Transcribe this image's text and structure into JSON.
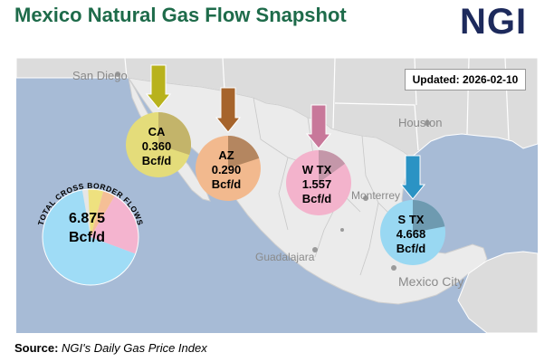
{
  "header": {
    "title": "Mexico Natural Gas Flow Snapshot",
    "logo_text": "NGI"
  },
  "updated": {
    "label": "Updated: 2026-02-10"
  },
  "map": {
    "water_color": "#a7bbd6",
    "land_color": "#dcdcdc",
    "mexico_color": "#ebebeb",
    "cities": [
      {
        "id": "san-diego",
        "name": "San Diego"
      },
      {
        "id": "houston",
        "name": "Houston"
      },
      {
        "id": "monterrey",
        "name": "Monterrey"
      },
      {
        "id": "guadalajara",
        "name": "Guadalajara"
      },
      {
        "id": "mexico-city",
        "name": "Mexico City"
      }
    ]
  },
  "total": {
    "label": "TOTAL CROSS BORDER FLOWS",
    "value": "6.875",
    "unit": "Bcf/d",
    "segments": [
      {
        "region": "CA",
        "share": 0.0524,
        "color": "#eee17f"
      },
      {
        "region": "AZ",
        "share": 0.0422,
        "color": "#f5bf96"
      },
      {
        "region": "W TX",
        "share": 0.2265,
        "color": "#f4b4cf"
      },
      {
        "region": "S TX",
        "share": 0.679,
        "color": "#9fdcf6"
      }
    ]
  },
  "regions": [
    {
      "id": "ca",
      "name": "CA",
      "value": "0.360",
      "unit": "Bcf/d",
      "fill": "#e4dc7a",
      "dark": "#c3b46a",
      "arrow": "#b8b21c",
      "pie_fraction": 0.3
    },
    {
      "id": "az",
      "name": "AZ",
      "value": "0.290",
      "unit": "Bcf/d",
      "fill": "#f2b98e",
      "dark": "#b48660",
      "arrow": "#a6642c",
      "pie_fraction": 0.2
    },
    {
      "id": "wtx",
      "name": "W TX",
      "value": "1.557",
      "unit": "Bcf/d",
      "fill": "#f3b3cc",
      "dark": "#c497a9",
      "arrow": "#c8789a",
      "pie_fraction": 0.15
    },
    {
      "id": "stx",
      "name": "S TX",
      "value": "4.668",
      "unit": "Bcf/d",
      "fill": "#99d8f2",
      "dark": "#6e9ab0",
      "arrow": "#2b93c4",
      "pie_fraction": 0.22
    }
  ],
  "source": {
    "label": "Source:",
    "text": "NGI's Daily Gas Price Index"
  }
}
